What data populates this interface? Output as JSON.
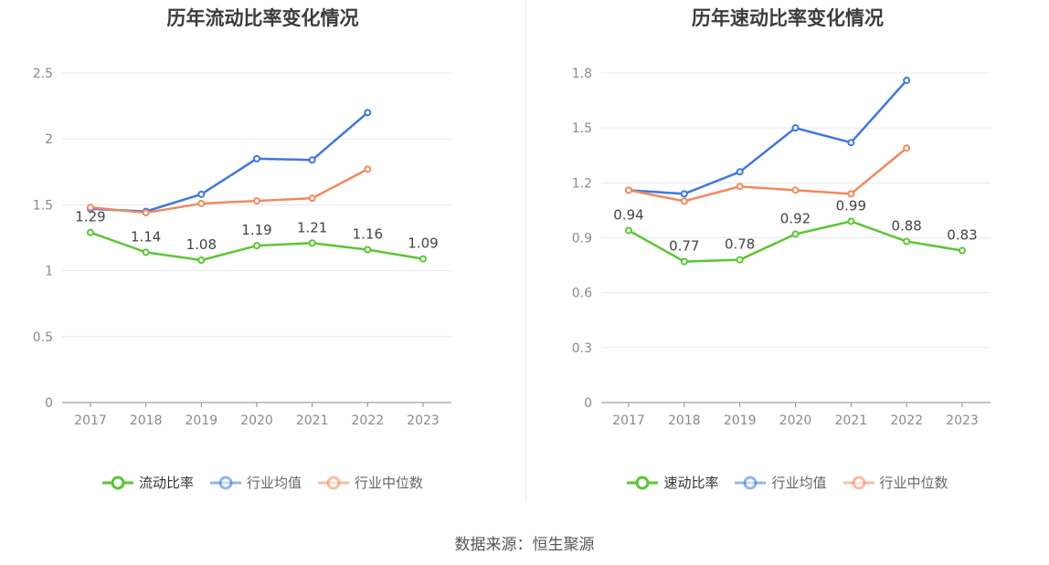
{
  "source": "数据来源：恒生聚源",
  "chart_data": [
    {
      "type": "line",
      "title": "历年流动比率变化情况",
      "categories": [
        "2017",
        "2018",
        "2019",
        "2020",
        "2021",
        "2022",
        "2023"
      ],
      "ylim": [
        0,
        2.5
      ],
      "yticks": [
        "0",
        "0.5",
        "1",
        "1.5",
        "2",
        "2.5"
      ],
      "grid": true,
      "legend_position": "bottom-center",
      "series": [
        {
          "name": "流动比率",
          "color": "#5cc534",
          "values": [
            1.29,
            1.14,
            1.08,
            1.19,
            1.21,
            1.16,
            1.09
          ],
          "labels": [
            "1.29",
            "1.14",
            "1.08",
            "1.19",
            "1.21",
            "1.16",
            "1.09"
          ]
        },
        {
          "name": "行业均值",
          "color": "#3f77e0",
          "values": [
            1.47,
            1.45,
            1.58,
            1.85,
            1.84,
            2.2,
            null
          ],
          "labels": []
        },
        {
          "name": "行业中位数",
          "color": "#f08a5d",
          "values": [
            1.48,
            1.44,
            1.51,
            1.53,
            1.55,
            1.77,
            null
          ],
          "labels": []
        }
      ]
    },
    {
      "type": "line",
      "title": "历年速动比率变化情况",
      "categories": [
        "2017",
        "2018",
        "2019",
        "2020",
        "2021",
        "2022",
        "2023"
      ],
      "ylim": [
        0,
        1.8
      ],
      "yticks": [
        "0",
        "0.3",
        "0.6",
        "0.9",
        "1.2",
        "1.5",
        "1.8"
      ],
      "grid": true,
      "legend_position": "bottom-center",
      "series": [
        {
          "name": "速动比率",
          "color": "#5cc534",
          "values": [
            0.94,
            0.77,
            0.78,
            0.92,
            0.99,
            0.88,
            0.83
          ],
          "labels": [
            "0.94",
            "0.77",
            "0.78",
            "0.92",
            "0.99",
            "0.88",
            "0.83"
          ]
        },
        {
          "name": "行业均值",
          "color": "#3f77e0",
          "values": [
            1.16,
            1.14,
            1.26,
            1.5,
            1.42,
            1.76,
            null
          ],
          "labels": []
        },
        {
          "name": "行业中位数",
          "color": "#f08a5d",
          "values": [
            1.16,
            1.1,
            1.18,
            1.16,
            1.14,
            1.39,
            null
          ],
          "labels": []
        }
      ]
    }
  ]
}
